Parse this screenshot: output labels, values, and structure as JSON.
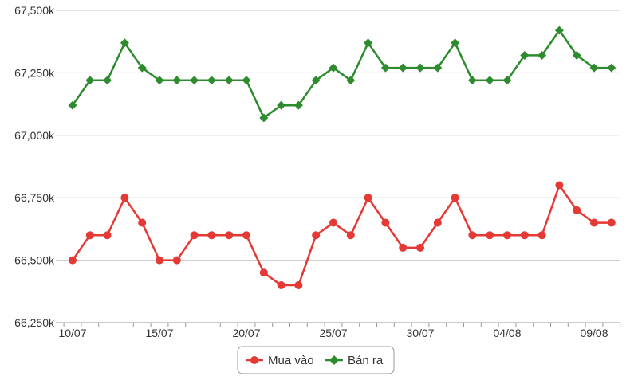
{
  "chart_data": {
    "type": "line",
    "ylim": [
      66250,
      67500
    ],
    "yticks": [
      66250,
      66500,
      66750,
      67000,
      67250,
      67500
    ],
    "ytick_labels": [
      "66,250k",
      "66,500k",
      "66,750k",
      "67,000k",
      "67,250k",
      "67,500k"
    ],
    "x_count": 32,
    "xtick_positions": [
      0,
      5,
      10,
      15,
      20,
      25,
      30
    ],
    "xtick_labels": [
      "10/07",
      "15/07",
      "20/07",
      "25/07",
      "30/07",
      "04/08",
      "09/08"
    ],
    "grid": true,
    "legend_position": "bottom",
    "series": [
      {
        "name": "Mua vào",
        "color": "#e53935",
        "marker": "circle",
        "values": [
          66500,
          66600,
          66600,
          66750,
          66650,
          66500,
          66500,
          66600,
          66600,
          66600,
          66600,
          66450,
          66400,
          66400,
          66600,
          66650,
          66600,
          66750,
          66650,
          66550,
          66550,
          66650,
          66750,
          66600,
          66600,
          66600,
          66600,
          66600,
          66800,
          66700,
          66650,
          66650
        ]
      },
      {
        "name": "Bán ra",
        "color": "#2e8b2e",
        "marker": "diamond",
        "values": [
          67120,
          67220,
          67220,
          67370,
          67270,
          67220,
          67220,
          67220,
          67220,
          67220,
          67220,
          67070,
          67120,
          67120,
          67220,
          67270,
          67220,
          67370,
          67270,
          67270,
          67270,
          67270,
          67370,
          67220,
          67220,
          67220,
          67320,
          67320,
          67420,
          67320,
          67270,
          67270
        ]
      }
    ]
  }
}
